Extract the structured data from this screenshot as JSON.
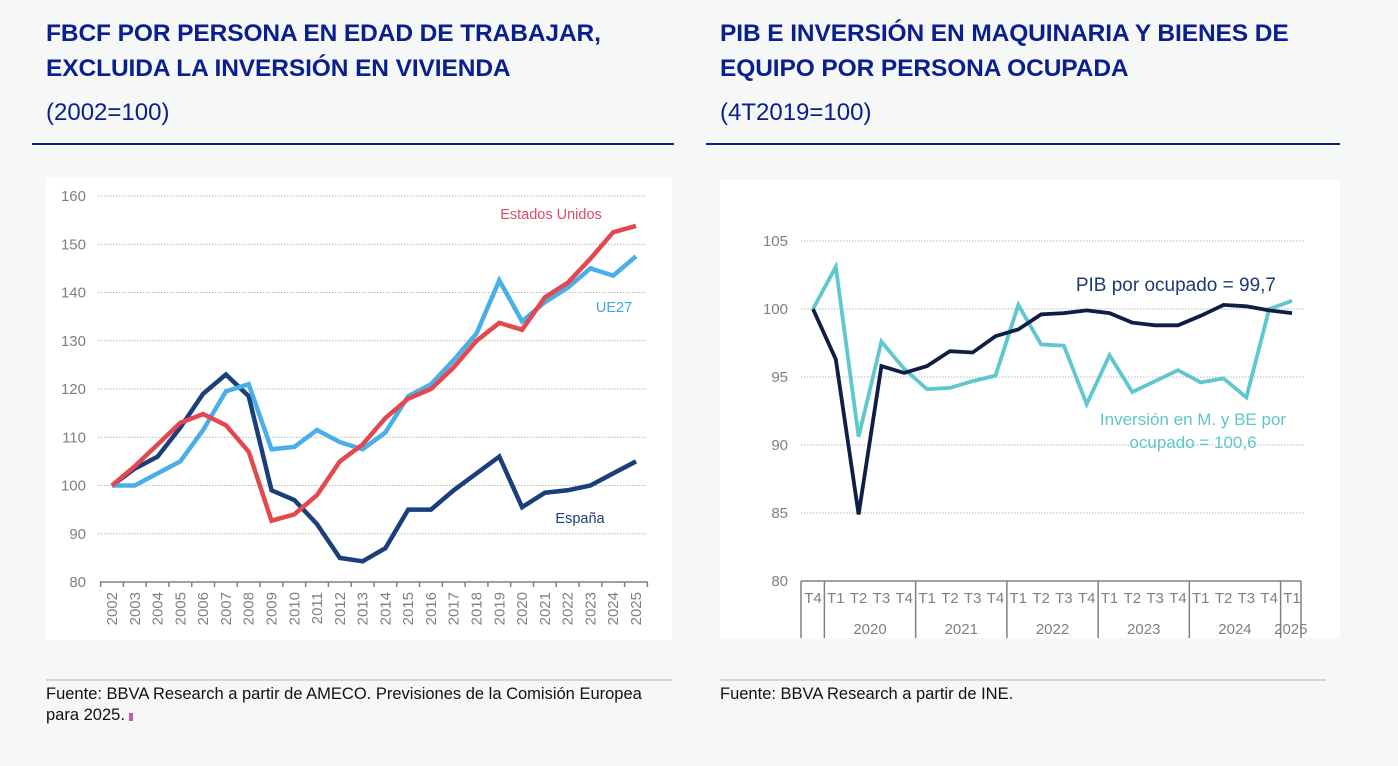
{
  "left": {
    "title": "FBCF POR PERSONA EN EDAD DE TRABAJAR, EXCLUIDA LA INVERSIÓN EN VIVIENDA",
    "subtitle": "(2002=100)",
    "source": "Fuente: BBVA Research a partir de AMECO. Previsiones de la Comisión Europea para 2025."
  },
  "right": {
    "title": "PIB E INVERSIÓN EN MAQUINARIA Y BIENES DE EQUIPO POR PERSONA OCUPADA",
    "subtitle": "(4T2019=100)",
    "source": "Fuente: BBVA Research a partir de INE."
  },
  "chart_data": [
    {
      "type": "line",
      "title": "FBCF POR PERSONA EN EDAD DE TRABAJAR, EXCLUIDA LA INVERSIÓN EN VIVIENDA",
      "subtitle": "(2002=100)",
      "xlabel": "",
      "ylabel": "",
      "ylim": [
        80,
        160
      ],
      "yticks": [
        80,
        90,
        100,
        110,
        120,
        130,
        140,
        150,
        160
      ],
      "grid": true,
      "x": [
        "2002",
        "2003",
        "2004",
        "2005",
        "2006",
        "2007",
        "2008",
        "2009",
        "2010",
        "2011",
        "2012",
        "2013",
        "2014",
        "2015",
        "2016",
        "2017",
        "2018",
        "2019",
        "2020",
        "2021",
        "2022",
        "2023",
        "2024",
        "2025"
      ],
      "series": [
        {
          "name": "España",
          "color": "#1a3f7a",
          "label_color": "#1a3f7a",
          "values": [
            100,
            103.5,
            106,
            112,
            119,
            123,
            118.5,
            99,
            97,
            92,
            85,
            84.3,
            87,
            95,
            95,
            99,
            102.5,
            106,
            95.5,
            98.5,
            99,
            100,
            102.5,
            105
          ]
        },
        {
          "name": "UE27",
          "color": "#4aaee8",
          "label_color": "#42a8e3",
          "values": [
            100,
            100,
            102.5,
            105,
            111.5,
            119.5,
            121,
            107.5,
            108,
            111.5,
            109,
            107.5,
            111,
            118.5,
            121,
            126,
            131.5,
            142.5,
            134,
            138,
            141,
            145,
            143.5,
            147.5
          ]
        },
        {
          "name": "Estados Unidos",
          "color": "#e5474e",
          "label_color": "#e0496a",
          "values": [
            100,
            104,
            108.5,
            113,
            114.8,
            112.5,
            107,
            92.7,
            94,
            98,
            105,
            108.5,
            114,
            118,
            120,
            124.5,
            130,
            133.7,
            132.3,
            139,
            142,
            147,
            152.5,
            153.8
          ]
        }
      ]
    },
    {
      "type": "line",
      "title": "PIB E INVERSIÓN EN MAQUINARIA Y BIENES DE EQUIPO POR PERSONA OCUPADA",
      "subtitle": "(4T2019=100)",
      "xlabel": "",
      "ylabel": "",
      "ylim": [
        80,
        105
      ],
      "yticks": [
        80,
        85,
        90,
        95,
        100,
        105
      ],
      "grid": true,
      "x": [
        "T4",
        "T1",
        "T2",
        "T3",
        "T4",
        "T1",
        "T2",
        "T3",
        "T4",
        "T1",
        "T2",
        "T3",
        "T4",
        "T1",
        "T2",
        "T3",
        "T4",
        "T1",
        "T2",
        "T3",
        "T4",
        "T1"
      ],
      "year_groups": [
        {
          "label": "",
          "count": 1
        },
        {
          "label": "2020",
          "count": 4
        },
        {
          "label": "2021",
          "count": 4
        },
        {
          "label": "2022",
          "count": 4
        },
        {
          "label": "2023",
          "count": 4
        },
        {
          "label": "2024",
          "count": 4
        },
        {
          "label": "2025",
          "count": 1
        }
      ],
      "series": [
        {
          "name": "PIB por ocupado",
          "label": "PIB por ocupado = 99,7",
          "color": "#0f1e45",
          "label_color": "#1c3a73",
          "values": [
            100,
            96.3,
            84.9,
            95.8,
            95.3,
            95.8,
            96.9,
            96.8,
            98,
            98.5,
            99.6,
            99.7,
            99.9,
            99.7,
            99,
            98.8,
            98.8,
            99.5,
            100.3,
            100.2,
            99.9,
            99.7
          ]
        },
        {
          "name": "Inversión en M. y BE por ocupado",
          "label_line1": "Inversión en M. y BE por",
          "label_line2": "ocupado = 100,6",
          "color": "#5ec8cc",
          "label_color": "#5ec5c8",
          "values": [
            100,
            103.1,
            90.6,
            97.6,
            95.6,
            94.1,
            94.2,
            94.7,
            95.1,
            100.3,
            97.4,
            97.3,
            93,
            96.6,
            93.9,
            94.7,
            95.5,
            94.6,
            94.9,
            93.5,
            100,
            100.6
          ]
        }
      ]
    }
  ]
}
